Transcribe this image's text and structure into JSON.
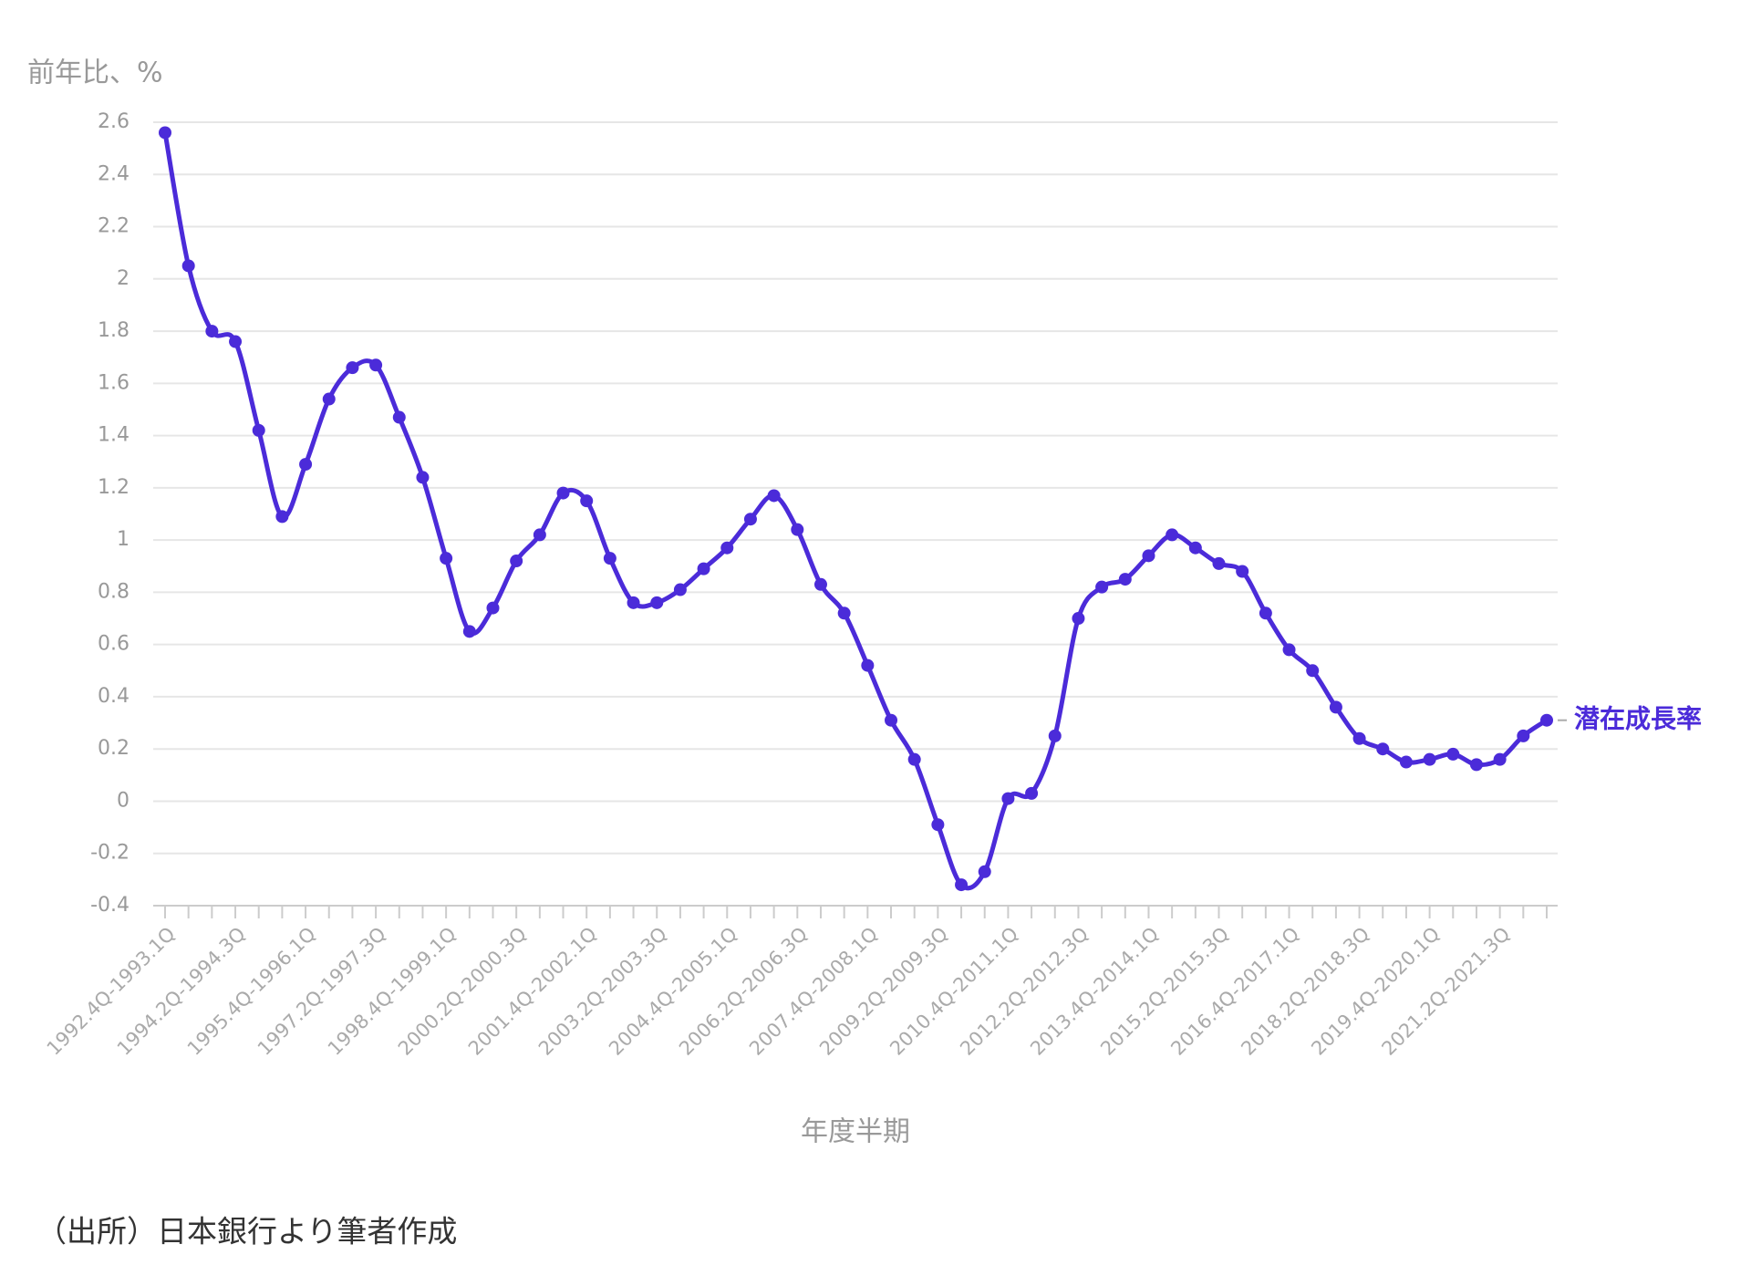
{
  "chart_data": {
    "type": "line",
    "y_label": "前年比、%",
    "x_label": "年度半期",
    "source": "（出所）日本銀行より筆者作成",
    "categories": [
      "1992.4Q-1993.1Q",
      null,
      null,
      "1994.2Q-1994.3Q",
      null,
      null,
      "1995.4Q-1996.1Q",
      null,
      null,
      "1997.2Q-1997.3Q",
      null,
      null,
      "1998.4Q-1999.1Q",
      null,
      null,
      "2000.2Q-2000.3Q",
      null,
      null,
      "2001.4Q-2002.1Q",
      null,
      null,
      "2003.2Q-2003.3Q",
      null,
      null,
      "2004.4Q-2005.1Q",
      null,
      null,
      "2006.2Q-2006.3Q",
      null,
      null,
      "2007.4Q-2008.1Q",
      null,
      null,
      "2009.2Q-2009.3Q",
      null,
      null,
      "2010.4Q-2011.1Q",
      null,
      null,
      "2012.2Q-2012.3Q",
      null,
      null,
      "2013.4Q-2014.1Q",
      null,
      null,
      "2015.2Q-2015.3Q",
      null,
      null,
      "2016.4Q-2017.1Q",
      null,
      null,
      "2018.2Q-2018.3Q",
      null,
      null,
      "2019.4Q-2020.1Q",
      null,
      null,
      "2021.2Q-2021.3Q",
      null,
      null
    ],
    "series": [
      {
        "name": "潜在成長率",
        "color": "#4b2bd9",
        "values": [
          2.56,
          2.05,
          1.8,
          1.76,
          1.42,
          1.09,
          1.29,
          1.54,
          1.66,
          1.67,
          1.47,
          1.24,
          0.93,
          0.65,
          0.74,
          0.92,
          1.02,
          1.18,
          1.15,
          0.93,
          0.76,
          0.76,
          0.81,
          0.89,
          0.97,
          1.08,
          1.17,
          1.04,
          0.83,
          0.72,
          0.52,
          0.31,
          0.16,
          -0.09,
          -0.32,
          -0.27,
          0.01,
          0.03,
          0.25,
          0.7,
          0.82,
          0.85,
          0.94,
          1.02,
          0.97,
          0.91,
          0.88,
          0.72,
          0.58,
          0.5,
          0.36,
          0.24,
          0.2,
          0.15,
          0.16,
          0.18,
          0.14,
          0.16,
          0.25,
          0.31
        ]
      }
    ],
    "ylim": [
      -0.4,
      2.6
    ],
    "yticks": [
      -0.4,
      -0.2,
      0,
      0.2,
      0.4,
      0.6,
      0.8,
      1,
      1.2,
      1.4,
      1.6,
      1.8,
      2,
      2.2,
      2.4,
      2.6
    ],
    "grid": true
  }
}
